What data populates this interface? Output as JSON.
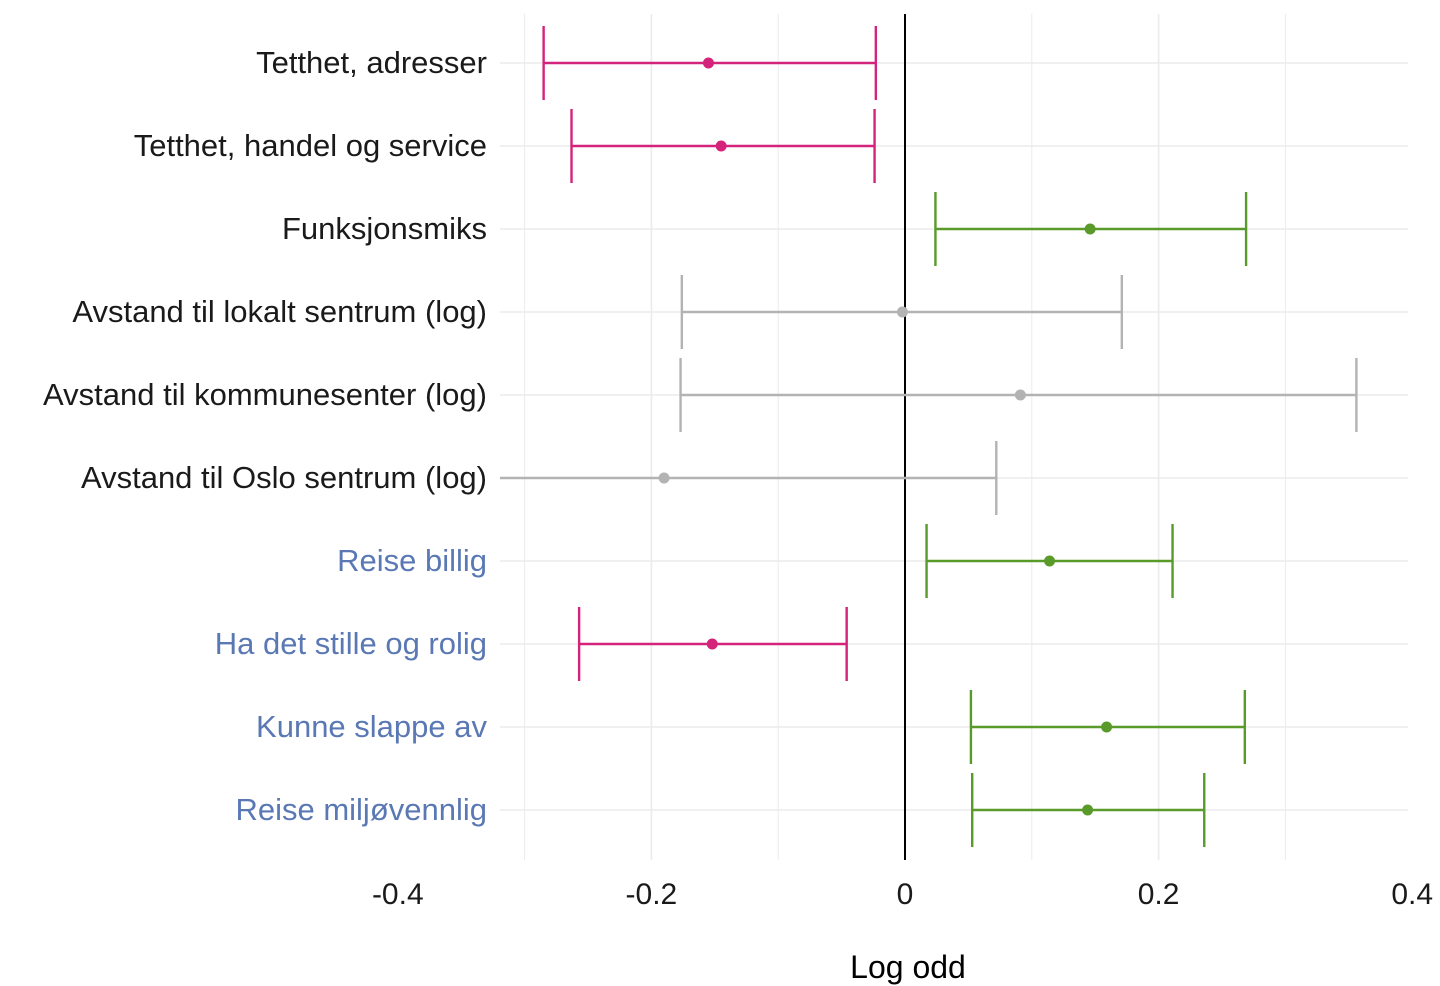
{
  "chart_data": {
    "type": "forest",
    "xlabel": "Log odd",
    "xlim": [
      -0.4,
      0.4
    ],
    "x_ticks": [
      "-0.4",
      "-0.2",
      "0",
      "0.2",
      "0.4"
    ],
    "x_tick_values": [
      -0.4,
      -0.2,
      0,
      0.2,
      0.4
    ],
    "grid": true,
    "reference_line": 0,
    "colors": {
      "negative": "#d4237a",
      "positive": "#5a9a2a",
      "not_significant": "#b3b3b3",
      "label_default": "#1a1a1a",
      "label_attitude": "#5a78b4"
    },
    "rows": [
      {
        "label": "Tetthet, adresser",
        "estimate": -0.155,
        "lower": -0.285,
        "upper": -0.023,
        "effect": "negative",
        "label_style": "default"
      },
      {
        "label": "Tetthet, handel og service",
        "estimate": -0.145,
        "lower": -0.263,
        "upper": -0.024,
        "effect": "negative",
        "label_style": "default"
      },
      {
        "label": "Funksjonsmiks",
        "estimate": 0.146,
        "lower": 0.024,
        "upper": 0.269,
        "effect": "positive",
        "label_style": "default"
      },
      {
        "label": "Avstand til lokalt sentrum (log)",
        "estimate": -0.002,
        "lower": -0.176,
        "upper": 0.171,
        "effect": "not_significant",
        "label_style": "default"
      },
      {
        "label": "Avstand til kommunesenter (log)",
        "estimate": 0.091,
        "lower": -0.177,
        "upper": 0.356,
        "effect": "not_significant",
        "label_style": "default"
      },
      {
        "label": "Avstand til Oslo sentrum (log)",
        "estimate": -0.19,
        "lower": -0.32,
        "upper": 0.072,
        "effect": "not_significant",
        "label_style": "default"
      },
      {
        "label": "Reise billig",
        "estimate": 0.114,
        "lower": 0.017,
        "upper": 0.211,
        "effect": "positive",
        "label_style": "attitude"
      },
      {
        "label": "Ha det stille og rolig",
        "estimate": -0.152,
        "lower": -0.257,
        "upper": -0.046,
        "effect": "negative",
        "label_style": "attitude"
      },
      {
        "label": "Kunne slappe av",
        "estimate": 0.159,
        "lower": 0.052,
        "upper": 0.268,
        "effect": "positive",
        "label_style": "attitude"
      },
      {
        "label": "Reise miljøvennlig",
        "estimate": 0.144,
        "lower": 0.053,
        "upper": 0.236,
        "effect": "positive",
        "label_style": "attitude"
      }
    ]
  }
}
